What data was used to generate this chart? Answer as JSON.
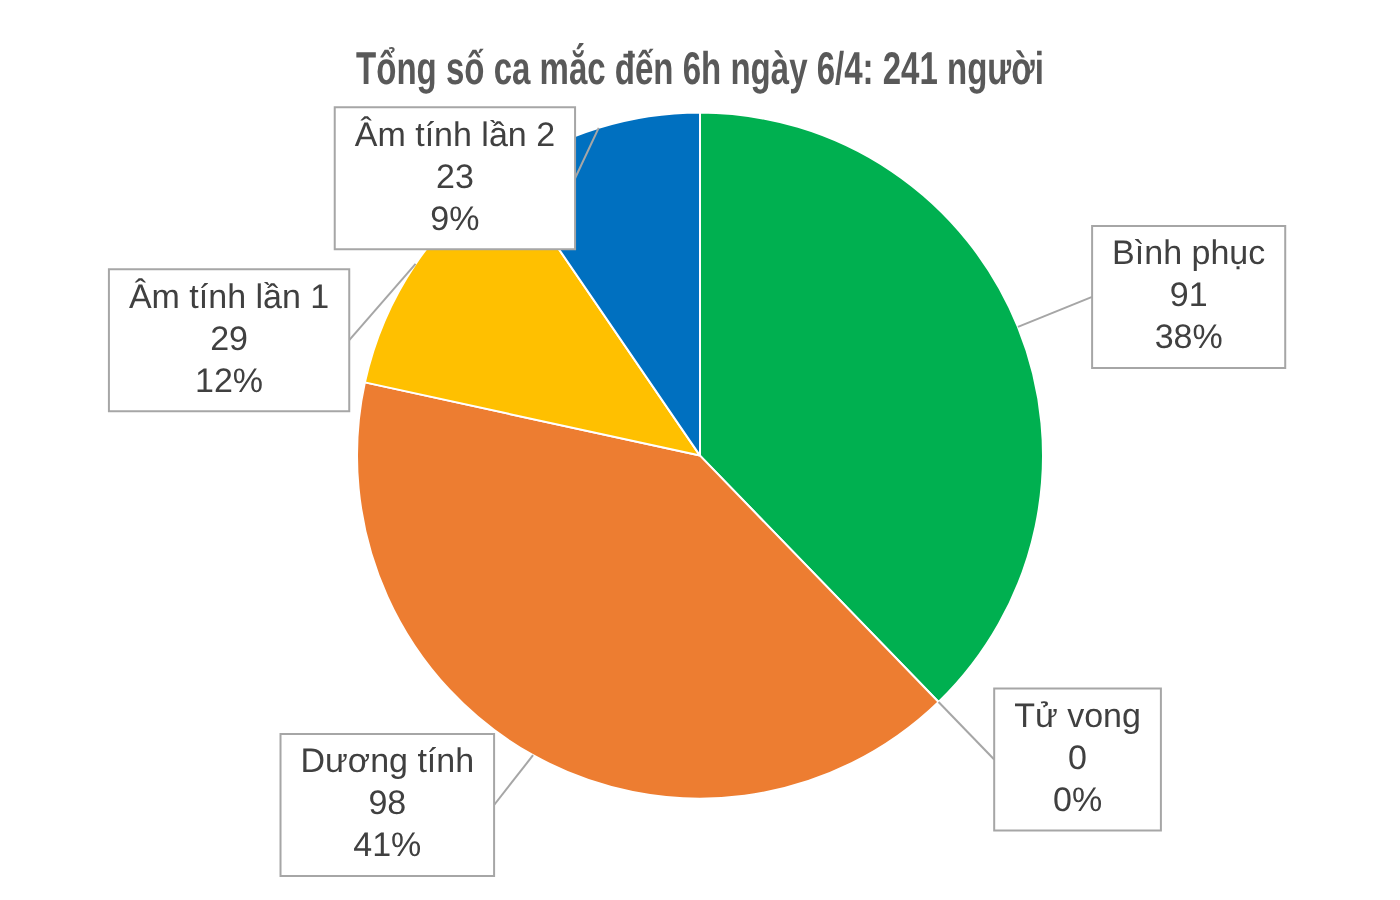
{
  "chart_data": {
    "type": "pie",
    "title": "Tổng số ca mắc đến 6h ngày 6/4: 241 người",
    "categories": [
      "Bình phục",
      "Tử vong",
      "Dương tính",
      "Âm tính lần 1",
      "Âm tính lần 2"
    ],
    "values": [
      91,
      0,
      98,
      29,
      23
    ],
    "colors": [
      "#00b050",
      "#a5a5a5",
      "#ed7d31",
      "#ffc000",
      "#0070c0"
    ],
    "value_labels": [
      "91\n38%",
      "0\n0%",
      "98\n41%",
      "29\n12%",
      "23\n9%"
    ]
  }
}
